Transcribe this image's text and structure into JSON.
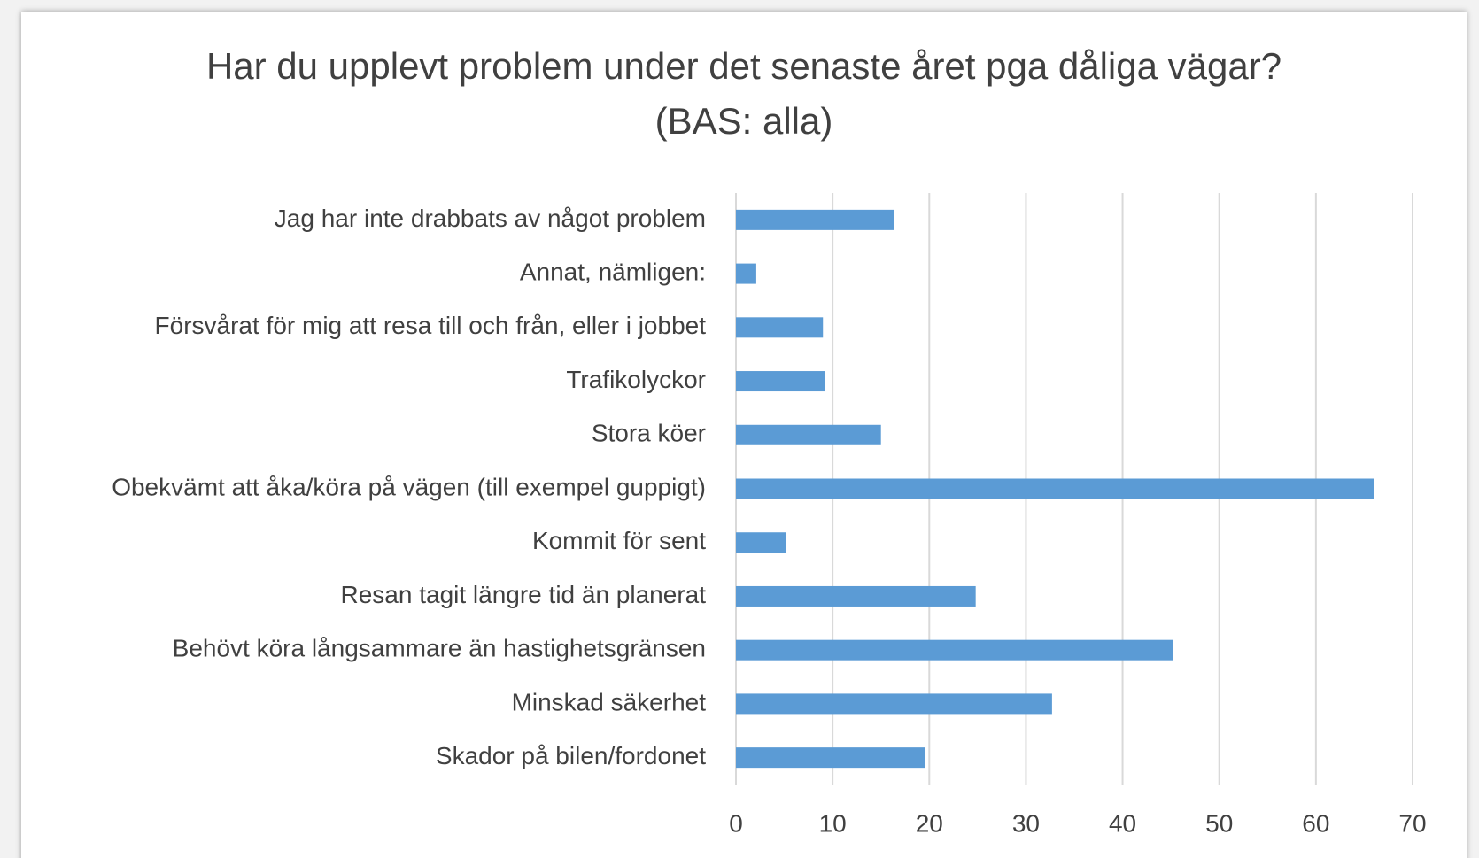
{
  "chart_data": {
    "type": "bar",
    "orientation": "horizontal",
    "title": "Har du upplevt problem under det senaste året pga dåliga vägar? (BAS: alla)",
    "categories": [
      "Jag har inte drabbats av något problem",
      "Annat, nämligen:",
      "Försvårat för mig att resa till och från, eller i jobbet",
      "Trafikolyckor",
      "Stora köer",
      "Obekvämt att åka/köra på vägen (till exempel guppigt)",
      "Kommit för sent",
      "Resan tagit längre tid än planerat",
      "Behövt köra långsammare än hastighetsgränsen",
      "Minskad säkerhet",
      "Skador på bilen/fordonet"
    ],
    "values": [
      16.4,
      2.1,
      9.0,
      9.2,
      15.0,
      66.0,
      5.2,
      24.8,
      45.2,
      32.7,
      19.6
    ],
    "color": "#5b9bd5",
    "xlim": [
      0,
      70
    ],
    "xticks": [
      0,
      10,
      20,
      30,
      40,
      50,
      60,
      70
    ],
    "grid": true
  }
}
